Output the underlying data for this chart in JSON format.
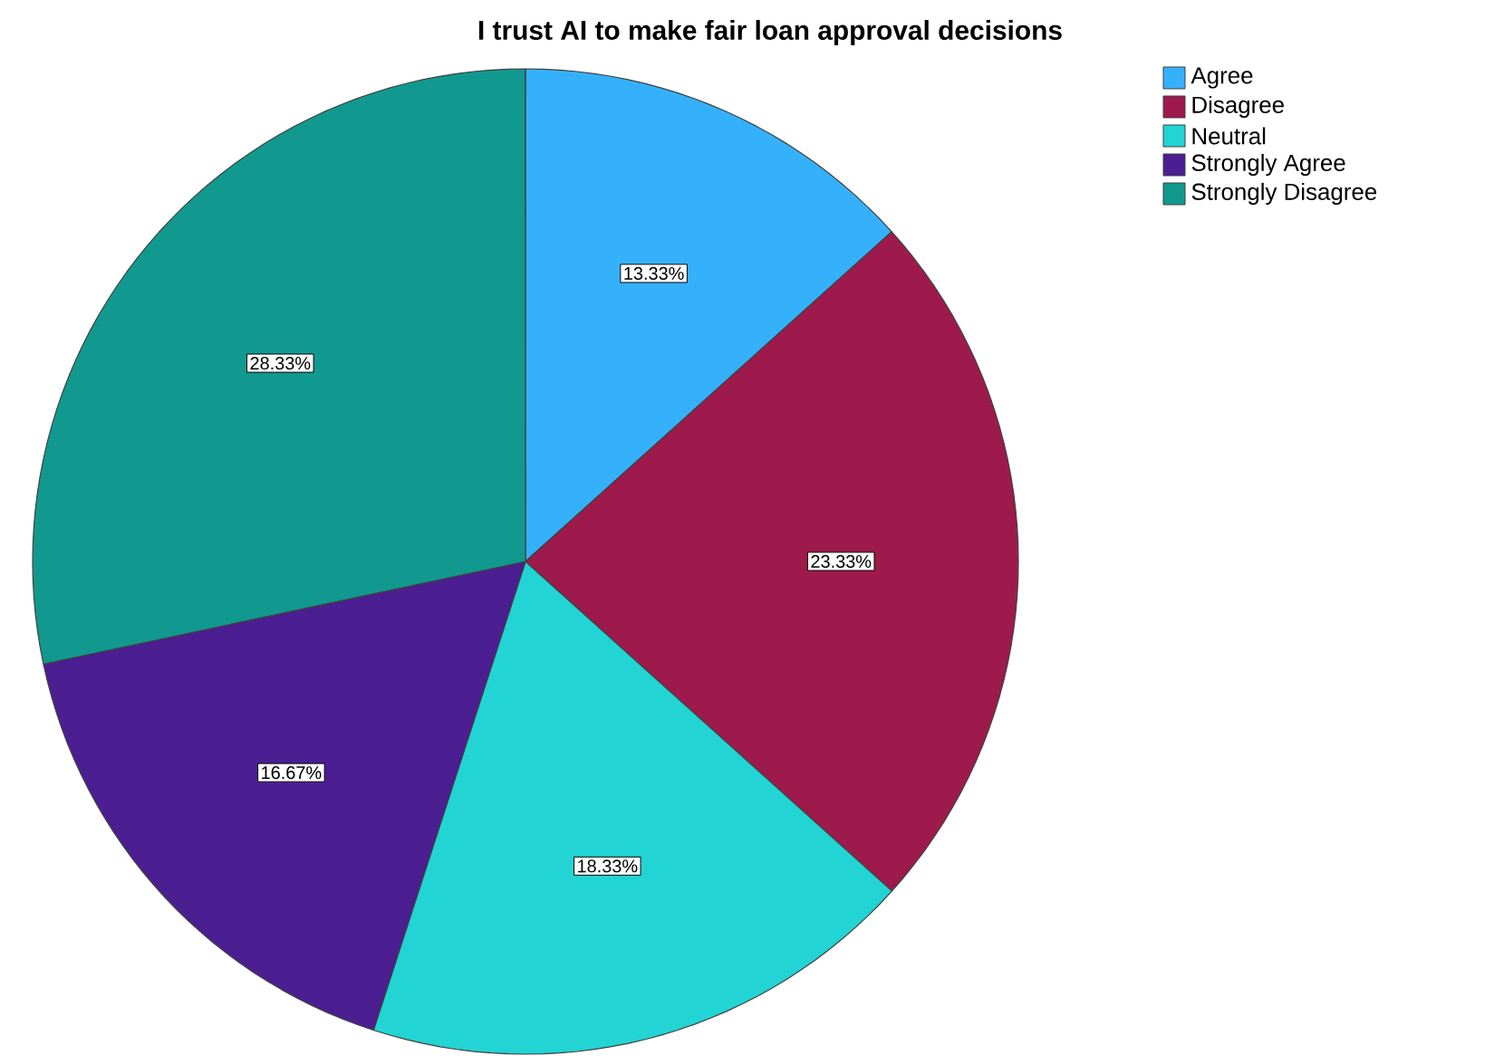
{
  "chart_data": {
    "type": "pie",
    "title": "I trust AI to make fair loan approval decisions",
    "categories": [
      "Agree",
      "Disagree",
      "Neutral",
      "Strongly Agree",
      "Strongly Disagree"
    ],
    "values": [
      13.33,
      23.33,
      18.33,
      16.67,
      28.33
    ],
    "value_labels": [
      "13.33%",
      "23.33%",
      "18.33%",
      "16.67%",
      "28.33%"
    ],
    "colors": [
      "#35b1fb",
      "#9e1a4c",
      "#22d4d4",
      "#4b1e92",
      "#11998f"
    ],
    "legend": "top right"
  }
}
